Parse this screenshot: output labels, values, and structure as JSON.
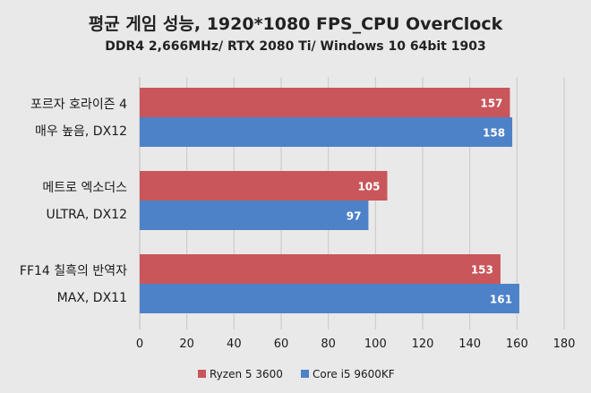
{
  "chart_data": {
    "type": "bar",
    "orientation": "horizontal",
    "title": "평균 게임 성능, 1920*1080 FPS_CPU OverClock",
    "subtitle": "DDR4 2,666MHz/ RTX 2080 Ti/ Windows 10 64bit 1903",
    "categories": [
      [
        "포르자 호라이즌 4",
        "매우 높음, DX12"
      ],
      [
        "메트로 엑소더스",
        "ULTRA, DX12"
      ],
      [
        "FF14 칠흑의 반역자",
        "MAX, DX11"
      ]
    ],
    "series": [
      {
        "name": "Ryzen 5 3600",
        "values": [
          157,
          105,
          153
        ],
        "color": "#c9565a"
      },
      {
        "name": "Core i5 9600KF",
        "values": [
          158,
          97,
          161
        ],
        "color": "#4d82c9"
      }
    ],
    "xlim": [
      0,
      180
    ],
    "xticks": [
      "0",
      "20",
      "40",
      "60",
      "80",
      "100",
      "120",
      "140",
      "160",
      "180"
    ],
    "grid": true,
    "legend": "bottom"
  }
}
